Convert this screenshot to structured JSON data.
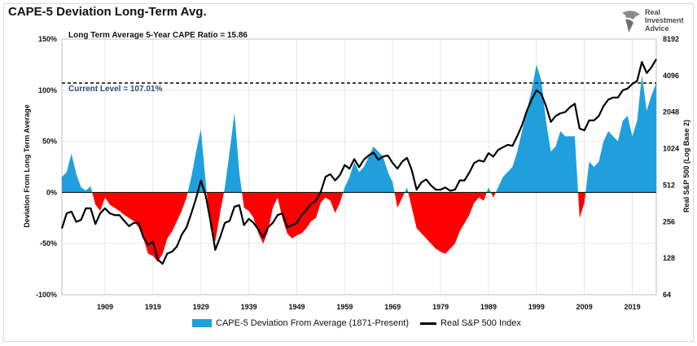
{
  "title": "CAPE-5 Deviation Long-Term Avg.",
  "brand": {
    "line1": "Real",
    "line2": "Investment",
    "line3": "Advice",
    "logo_icon": "eagle-head-icon"
  },
  "chart_data": {
    "type": "area",
    "annotations": {
      "long_term_avg": "Long Term Average 5-Year CAPE Ratio = 15.86",
      "current_level": "Current Level = 107.01%",
      "current_level_value": 107.01
    },
    "left_axis": {
      "label": "Deviation From Long Term Average",
      "ticks": [
        "150%",
        "100%",
        "50%",
        "0%",
        "-50%",
        "-100%"
      ],
      "range": [
        -100,
        150
      ]
    },
    "right_axis": {
      "label": "Real S&P 500 (Log Base 2)",
      "ticks": [
        "8192",
        "4096",
        "2048",
        "1024",
        "512",
        "256",
        "128",
        "64"
      ],
      "range": [
        64,
        8192
      ],
      "scale": "log2"
    },
    "x_axis": {
      "ticks": [
        "1909",
        "1919",
        "1929",
        "1939",
        "1949",
        "1959",
        "1969",
        "1979",
        "1989",
        "1999",
        "2009",
        "2019"
      ],
      "range": [
        1900,
        2024
      ]
    },
    "colors": {
      "positive": "#1fa0dc",
      "negative": "#ff0000",
      "line": "#000000"
    },
    "series": [
      {
        "name": "CAPE-5 Deviation From Average (1871-Present)",
        "points": [
          [
            1900,
            15
          ],
          [
            1901,
            20
          ],
          [
            1902,
            38
          ],
          [
            1903,
            18
          ],
          [
            1904,
            5
          ],
          [
            1905,
            2
          ],
          [
            1906,
            6
          ],
          [
            1907,
            -12
          ],
          [
            1908,
            -18
          ],
          [
            1909,
            -5
          ],
          [
            1910,
            -12
          ],
          [
            1911,
            -15
          ],
          [
            1912,
            -18
          ],
          [
            1913,
            -22
          ],
          [
            1914,
            -25
          ],
          [
            1915,
            -28
          ],
          [
            1916,
            -34
          ],
          [
            1917,
            -45
          ],
          [
            1918,
            -60
          ],
          [
            1919,
            -62
          ],
          [
            1920,
            -68
          ],
          [
            1921,
            -60
          ],
          [
            1922,
            -45
          ],
          [
            1923,
            -38
          ],
          [
            1924,
            -28
          ],
          [
            1925,
            -18
          ],
          [
            1926,
            -5
          ],
          [
            1927,
            15
          ],
          [
            1928,
            40
          ],
          [
            1929,
            62
          ],
          [
            1930,
            10
          ],
          [
            1931,
            -35
          ],
          [
            1932,
            -48
          ],
          [
            1933,
            -20
          ],
          [
            1934,
            5
          ],
          [
            1935,
            40
          ],
          [
            1936,
            78
          ],
          [
            1937,
            20
          ],
          [
            1938,
            -15
          ],
          [
            1939,
            -18
          ],
          [
            1940,
            -25
          ],
          [
            1941,
            -40
          ],
          [
            1942,
            -50
          ],
          [
            1943,
            -38
          ],
          [
            1944,
            -15
          ],
          [
            1945,
            -5
          ],
          [
            1946,
            -25
          ],
          [
            1947,
            -40
          ],
          [
            1948,
            -45
          ],
          [
            1949,
            -42
          ],
          [
            1950,
            -40
          ],
          [
            1951,
            -35
          ],
          [
            1952,
            -28
          ],
          [
            1953,
            -25
          ],
          [
            1954,
            -10
          ],
          [
            1955,
            -5
          ],
          [
            1956,
            -8
          ],
          [
            1957,
            -20
          ],
          [
            1958,
            -10
          ],
          [
            1959,
            5
          ],
          [
            1960,
            15
          ],
          [
            1961,
            30
          ],
          [
            1962,
            20
          ],
          [
            1963,
            25
          ],
          [
            1964,
            35
          ],
          [
            1965,
            45
          ],
          [
            1966,
            40
          ],
          [
            1967,
            35
          ],
          [
            1968,
            20
          ],
          [
            1969,
            10
          ],
          [
            1970,
            -15
          ],
          [
            1971,
            -5
          ],
          [
            1972,
            5
          ],
          [
            1973,
            -15
          ],
          [
            1974,
            -35
          ],
          [
            1975,
            -40
          ],
          [
            1976,
            -45
          ],
          [
            1977,
            -50
          ],
          [
            1978,
            -55
          ],
          [
            1979,
            -58
          ],
          [
            1980,
            -60
          ],
          [
            1981,
            -55
          ],
          [
            1982,
            -50
          ],
          [
            1983,
            -38
          ],
          [
            1984,
            -30
          ],
          [
            1985,
            -22
          ],
          [
            1986,
            -10
          ],
          [
            1987,
            -5
          ],
          [
            1988,
            -8
          ],
          [
            1989,
            5
          ],
          [
            1990,
            -5
          ],
          [
            1991,
            5
          ],
          [
            1992,
            15
          ],
          [
            1993,
            20
          ],
          [
            1994,
            25
          ],
          [
            1995,
            40
          ],
          [
            1996,
            60
          ],
          [
            1997,
            80
          ],
          [
            1998,
            100
          ],
          [
            1999,
            125
          ],
          [
            2000,
            110
          ],
          [
            2001,
            70
          ],
          [
            2002,
            40
          ],
          [
            2003,
            45
          ],
          [
            2004,
            60
          ],
          [
            2005,
            55
          ],
          [
            2006,
            55
          ],
          [
            2007,
            55
          ],
          [
            2008,
            -25
          ],
          [
            2009,
            -10
          ],
          [
            2010,
            30
          ],
          [
            2011,
            25
          ],
          [
            2012,
            30
          ],
          [
            2013,
            50
          ],
          [
            2014,
            60
          ],
          [
            2015,
            55
          ],
          [
            2016,
            50
          ],
          [
            2017,
            70
          ],
          [
            2018,
            75
          ],
          [
            2019,
            55
          ],
          [
            2020,
            70
          ],
          [
            2021,
            115
          ],
          [
            2022,
            80
          ],
          [
            2023,
            95
          ],
          [
            2024,
            107
          ]
        ]
      },
      {
        "name": "Real S&P 500 Index",
        "points": [
          [
            1900,
            225
          ],
          [
            1901,
            300
          ],
          [
            1902,
            310
          ],
          [
            1903,
            255
          ],
          [
            1904,
            265
          ],
          [
            1905,
            330
          ],
          [
            1906,
            330
          ],
          [
            1907,
            245
          ],
          [
            1908,
            300
          ],
          [
            1909,
            330
          ],
          [
            1910,
            300
          ],
          [
            1911,
            290
          ],
          [
            1912,
            290
          ],
          [
            1913,
            260
          ],
          [
            1914,
            235
          ],
          [
            1915,
            250
          ],
          [
            1916,
            250
          ],
          [
            1917,
            190
          ],
          [
            1918,
            165
          ],
          [
            1919,
            175
          ],
          [
            1920,
            125
          ],
          [
            1921,
            115
          ],
          [
            1922,
            140
          ],
          [
            1923,
            145
          ],
          [
            1924,
            160
          ],
          [
            1925,
            200
          ],
          [
            1926,
            230
          ],
          [
            1927,
            300
          ],
          [
            1928,
            400
          ],
          [
            1929,
            560
          ],
          [
            1930,
            420
          ],
          [
            1931,
            260
          ],
          [
            1932,
            150
          ],
          [
            1933,
            190
          ],
          [
            1934,
            250
          ],
          [
            1935,
            260
          ],
          [
            1936,
            340
          ],
          [
            1937,
            350
          ],
          [
            1938,
            240
          ],
          [
            1939,
            270
          ],
          [
            1940,
            250
          ],
          [
            1941,
            220
          ],
          [
            1942,
            190
          ],
          [
            1943,
            230
          ],
          [
            1944,
            250
          ],
          [
            1945,
            290
          ],
          [
            1946,
            300
          ],
          [
            1947,
            230
          ],
          [
            1948,
            240
          ],
          [
            1949,
            250
          ],
          [
            1950,
            290
          ],
          [
            1951,
            320
          ],
          [
            1952,
            360
          ],
          [
            1953,
            380
          ],
          [
            1954,
            450
          ],
          [
            1955,
            600
          ],
          [
            1956,
            630
          ],
          [
            1957,
            560
          ],
          [
            1958,
            620
          ],
          [
            1959,
            750
          ],
          [
            1960,
            700
          ],
          [
            1961,
            840
          ],
          [
            1962,
            720
          ],
          [
            1963,
            830
          ],
          [
            1964,
            900
          ],
          [
            1965,
            950
          ],
          [
            1966,
            830
          ],
          [
            1967,
            880
          ],
          [
            1968,
            900
          ],
          [
            1969,
            780
          ],
          [
            1970,
            700
          ],
          [
            1971,
            800
          ],
          [
            1972,
            860
          ],
          [
            1973,
            680
          ],
          [
            1974,
            470
          ],
          [
            1975,
            540
          ],
          [
            1976,
            570
          ],
          [
            1977,
            510
          ],
          [
            1978,
            470
          ],
          [
            1979,
            470
          ],
          [
            1980,
            490
          ],
          [
            1981,
            460
          ],
          [
            1982,
            470
          ],
          [
            1983,
            560
          ],
          [
            1984,
            560
          ],
          [
            1985,
            650
          ],
          [
            1986,
            780
          ],
          [
            1987,
            820
          ],
          [
            1988,
            800
          ],
          [
            1989,
            940
          ],
          [
            1990,
            880
          ],
          [
            1991,
            1000
          ],
          [
            1992,
            1050
          ],
          [
            1993,
            1100
          ],
          [
            1994,
            1080
          ],
          [
            1995,
            1300
          ],
          [
            1996,
            1600
          ],
          [
            1997,
            2100
          ],
          [
            1998,
            2600
          ],
          [
            1999,
            3100
          ],
          [
            2000,
            2900
          ],
          [
            2001,
            2300
          ],
          [
            2002,
            1700
          ],
          [
            2003,
            1900
          ],
          [
            2004,
            2000
          ],
          [
            2005,
            2050
          ],
          [
            2006,
            2250
          ],
          [
            2007,
            2400
          ],
          [
            2008,
            1500
          ],
          [
            2009,
            1450
          ],
          [
            2010,
            1750
          ],
          [
            2011,
            1750
          ],
          [
            2012,
            1900
          ],
          [
            2013,
            2300
          ],
          [
            2014,
            2600
          ],
          [
            2015,
            2700
          ],
          [
            2016,
            2700
          ],
          [
            2017,
            3100
          ],
          [
            2018,
            3200
          ],
          [
            2019,
            3500
          ],
          [
            2020,
            3700
          ],
          [
            2021,
            5300
          ],
          [
            2022,
            4300
          ],
          [
            2023,
            4800
          ],
          [
            2024,
            5600
          ]
        ]
      }
    ]
  }
}
